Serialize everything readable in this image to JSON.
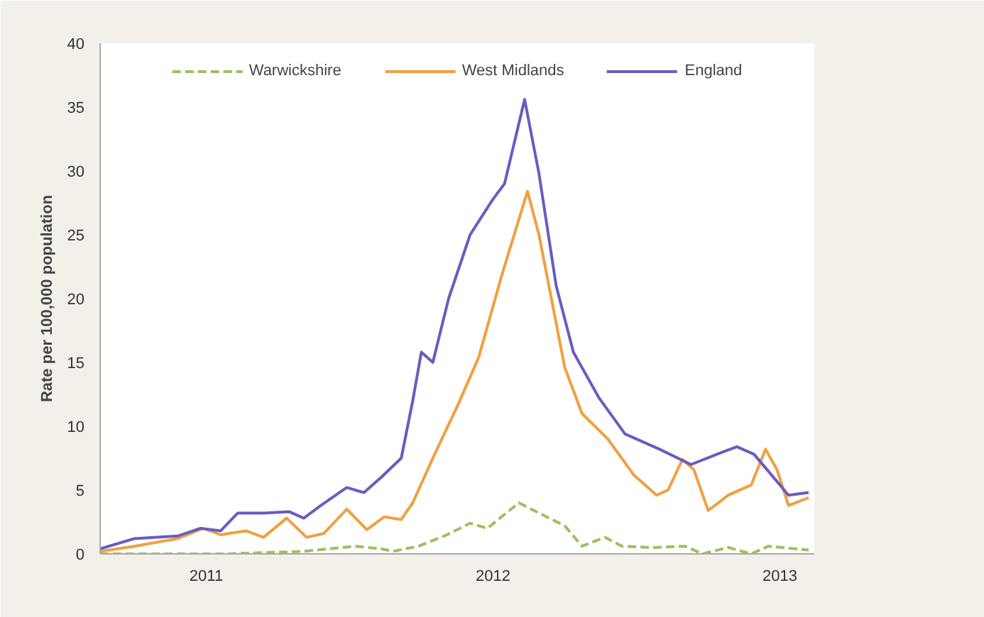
{
  "chart_data": {
    "type": "line",
    "ylabel": "Rate per 100,000 population",
    "xlim": [
      2011.13,
      2013.62
    ],
    "xticks": [
      {
        "value": 2011.5,
        "label": "2011"
      },
      {
        "value": 2012.5,
        "label": "2012"
      },
      {
        "value": 2013.5,
        "label": "2013"
      }
    ],
    "ylim": [
      0,
      40
    ],
    "yticks": [
      0,
      5,
      10,
      15,
      20,
      25,
      30,
      35,
      40
    ],
    "grid": false,
    "legend": "top",
    "marker": "none",
    "series": [
      {
        "name": "Warwickshire",
        "color": "#9cc060",
        "line_style": "dashed",
        "x": [
          2011.13,
          2011.57,
          2011.84,
          2012.02,
          2012.11,
          2012.15,
          2012.24,
          2012.33,
          2012.42,
          2012.48,
          2012.59,
          2012.66,
          2012.75,
          2012.81,
          2012.89,
          2012.95,
          2013.05,
          2013.17,
          2013.23,
          2013.32,
          2013.4,
          2013.46,
          2013.6
        ],
        "values": [
          0,
          0,
          0.2,
          0.6,
          0.4,
          0.2,
          0.6,
          1.4,
          2.4,
          2.0,
          4.0,
          3.2,
          2.2,
          0.6,
          1.3,
          0.6,
          0.5,
          0.6,
          0,
          0.5,
          0,
          0.6,
          0.3
        ]
      },
      {
        "name": "West Midlands",
        "color": "#f0a040",
        "line_style": "solid",
        "x": [
          2011.13,
          2011.25,
          2011.4,
          2011.49,
          2011.55,
          2011.64,
          2011.7,
          2011.78,
          2011.85,
          2011.91,
          2011.99,
          2012.06,
          2012.12,
          2012.18,
          2012.22,
          2012.29,
          2012.38,
          2012.45,
          2012.53,
          2012.62,
          2012.66,
          2012.75,
          2012.81,
          2012.9,
          2012.99,
          2013.07,
          2013.11,
          2013.16,
          2013.2,
          2013.25,
          2013.32,
          2013.4,
          2013.45,
          2013.49,
          2013.53,
          2013.6
        ],
        "values": [
          0.2,
          0.6,
          1.2,
          2.0,
          1.5,
          1.8,
          1.3,
          2.8,
          1.3,
          1.6,
          3.5,
          1.9,
          2.9,
          2.7,
          4.0,
          7.5,
          11.8,
          15.4,
          21.8,
          28.4,
          25,
          14.6,
          11,
          9,
          6.2,
          4.6,
          5,
          7.4,
          6.6,
          3.4,
          4.6,
          5.4,
          8.2,
          6.6,
          3.8,
          4.4
        ]
      },
      {
        "name": "England",
        "color": "#6a5cc0",
        "line_style": "solid",
        "x": [
          2011.13,
          2011.25,
          2011.4,
          2011.48,
          2011.55,
          2011.61,
          2011.7,
          2011.79,
          2011.84,
          2011.9,
          2011.99,
          2012.05,
          2012.11,
          2012.18,
          2012.22,
          2012.25,
          2012.29,
          2012.345,
          2012.42,
          2012.5,
          2012.54,
          2012.61,
          2012.66,
          2012.72,
          2012.78,
          2012.87,
          2012.96,
          2013.08,
          2013.19,
          2013.28,
          2013.35,
          2013.41,
          2013.47,
          2013.53,
          2013.6
        ],
        "values": [
          0.4,
          1.2,
          1.4,
          2.0,
          1.8,
          3.2,
          3.2,
          3.3,
          2.8,
          3.8,
          5.2,
          4.8,
          6.0,
          7.5,
          12,
          15.8,
          15,
          20,
          25,
          27.8,
          29,
          35.6,
          29.8,
          21,
          15.8,
          12.2,
          9.4,
          8.2,
          7,
          7.8,
          8.4,
          7.8,
          6.2,
          4.6,
          4.8
        ]
      }
    ]
  }
}
